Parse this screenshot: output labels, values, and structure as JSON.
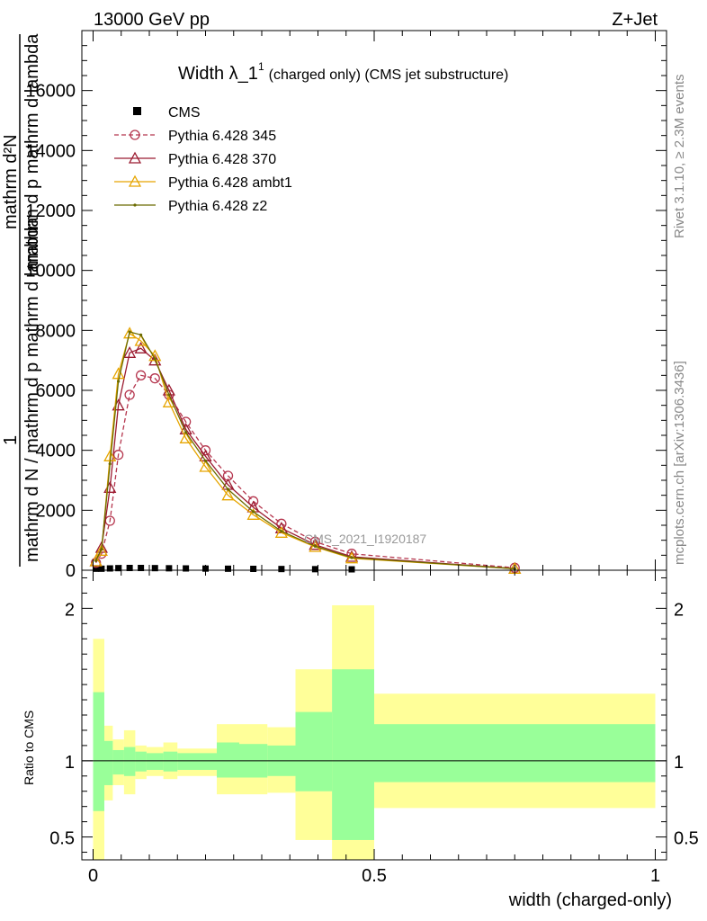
{
  "header": {
    "left": "13000 GeV pp",
    "right": "Z+Jet"
  },
  "side_text": {
    "rivet": "Rivet 3.1.10, ≥ 2.3M events",
    "mcplots": "mcplots.cern.ch [arXiv:1306.3436]"
  },
  "chart_data": [
    {
      "type": "line",
      "title_main": "Width λ_1",
      "title_sup": "1",
      "title_rest": "(charged only) (CMS jet substructure)",
      "watermark": "CMS_2021_I1920187",
      "ylabel_parts": [
        "1",
        "mathrm d N",
        "mathrm d²N",
        "mathrm d p_mathrm d lambda"
      ],
      "ylabel_lines": [
        "1",
        "mathrm d N / mathrm d p mathrm d lambda",
        "mathrm d²N",
        "mathrm d p mathrm d lambda"
      ],
      "ylim": [
        0,
        18000
      ],
      "xlim": [
        -0.02,
        1.02
      ],
      "yticks": [
        0,
        2000,
        4000,
        6000,
        8000,
        10000,
        12000,
        14000,
        16000
      ],
      "ytick_labels": [
        "0",
        "2000",
        "4000",
        "6000",
        "8000",
        "10000",
        "12000",
        "14000",
        "16000"
      ],
      "legend_placement": "top-left",
      "series": [
        {
          "name": "CMS",
          "color": "#000000",
          "marker": "square",
          "x": [
            0.005,
            0.015,
            0.03,
            0.045,
            0.065,
            0.085,
            0.11,
            0.135,
            0.165,
            0.2,
            0.24,
            0.285,
            0.335,
            0.395,
            0.46
          ],
          "y": [
            50,
            50,
            60,
            70,
            75,
            75,
            70,
            65,
            60,
            55,
            50,
            45,
            40,
            35,
            30
          ]
        },
        {
          "name": "Pythia 6.428 345",
          "color": "#b5364e",
          "marker": "circle",
          "dashed": true,
          "x": [
            0.005,
            0.015,
            0.03,
            0.045,
            0.065,
            0.085,
            0.11,
            0.135,
            0.165,
            0.2,
            0.24,
            0.285,
            0.335,
            0.395,
            0.46,
            0.75
          ],
          "y": [
            250,
            550,
            1650,
            3850,
            5850,
            6500,
            6400,
            5850,
            4950,
            4000,
            3150,
            2300,
            1550,
            950,
            550,
            80
          ]
        },
        {
          "name": "Pythia 6.428 370",
          "color": "#9b1b30",
          "marker": "triangle",
          "x": [
            0.005,
            0.015,
            0.03,
            0.045,
            0.065,
            0.085,
            0.11,
            0.135,
            0.165,
            0.2,
            0.24,
            0.285,
            0.335,
            0.395,
            0.46,
            0.75
          ],
          "y": [
            300,
            750,
            2750,
            5500,
            7250,
            7400,
            7000,
            6000,
            4700,
            3800,
            2850,
            2100,
            1400,
            850,
            450,
            55
          ]
        },
        {
          "name": "Pythia 6.428 ambt1",
          "color": "#e6a500",
          "marker": "triangle",
          "x": [
            0.005,
            0.015,
            0.03,
            0.045,
            0.065,
            0.085,
            0.11,
            0.135,
            0.165,
            0.2,
            0.24,
            0.285,
            0.335,
            0.395,
            0.46,
            0.75
          ],
          "y": [
            300,
            650,
            3800,
            6550,
            7900,
            7650,
            7150,
            5600,
            4400,
            3450,
            2500,
            1850,
            1250,
            780,
            400,
            50
          ]
        },
        {
          "name": "Pythia 6.428 z2",
          "color": "#6b6b00",
          "marker": "dot",
          "x": [
            0.005,
            0.015,
            0.03,
            0.045,
            0.065,
            0.085,
            0.11,
            0.135,
            0.165,
            0.2,
            0.24,
            0.285,
            0.335,
            0.395,
            0.46,
            0.75
          ],
          "y": [
            320,
            700,
            3550,
            6300,
            7950,
            7850,
            7050,
            5850,
            4600,
            3650,
            2700,
            1950,
            1300,
            800,
            420,
            50
          ]
        }
      ]
    },
    {
      "type": "area",
      "ylabel": "Ratio to CMS",
      "xlabel": "width (charged-only)",
      "xlim": [
        -0.02,
        1.02
      ],
      "ylim": [
        0.35,
        2.25
      ],
      "yticks": [
        0.5,
        1,
        2
      ],
      "ytick_labels": [
        "0.5",
        "1",
        "2"
      ],
      "xticks": [
        0,
        0.5,
        1
      ],
      "xtick_labels": [
        "0",
        "0.5",
        "1"
      ],
      "bins": [
        {
          "lo": 0.0,
          "hi": 0.02,
          "stat_lo": 0.67,
          "stat_hi": 1.45,
          "tot_lo": 0.0,
          "tot_hi": 1.8
        },
        {
          "lo": 0.02,
          "hi": 0.035,
          "stat_lo": 0.84,
          "stat_hi": 1.13,
          "tot_lo": 0.74,
          "tot_hi": 1.23
        },
        {
          "lo": 0.035,
          "hi": 0.055,
          "stat_lo": 0.91,
          "stat_hi": 1.07,
          "tot_lo": 0.84,
          "tot_hi": 1.14
        },
        {
          "lo": 0.055,
          "hi": 0.075,
          "stat_lo": 0.9,
          "stat_hi": 1.09,
          "tot_lo": 0.78,
          "tot_hi": 1.2
        },
        {
          "lo": 0.075,
          "hi": 0.095,
          "stat_lo": 0.93,
          "stat_hi": 1.06,
          "tot_lo": 0.88,
          "tot_hi": 1.1
        },
        {
          "lo": 0.095,
          "hi": 0.125,
          "stat_lo": 0.94,
          "stat_hi": 1.05,
          "tot_lo": 0.9,
          "tot_hi": 1.09
        },
        {
          "lo": 0.125,
          "hi": 0.15,
          "stat_lo": 0.93,
          "stat_hi": 1.06,
          "tot_lo": 0.88,
          "tot_hi": 1.12
        },
        {
          "lo": 0.15,
          "hi": 0.18,
          "stat_lo": 0.94,
          "stat_hi": 1.05,
          "tot_lo": 0.9,
          "tot_hi": 1.08
        },
        {
          "lo": 0.18,
          "hi": 0.22,
          "stat_lo": 0.94,
          "stat_hi": 1.05,
          "tot_lo": 0.9,
          "tot_hi": 1.08
        },
        {
          "lo": 0.22,
          "hi": 0.26,
          "stat_lo": 0.89,
          "stat_hi": 1.12,
          "tot_lo": 0.78,
          "tot_hi": 1.24
        },
        {
          "lo": 0.26,
          "hi": 0.31,
          "stat_lo": 0.89,
          "stat_hi": 1.11,
          "tot_lo": 0.78,
          "tot_hi": 1.24
        },
        {
          "lo": 0.31,
          "hi": 0.36,
          "stat_lo": 0.9,
          "stat_hi": 1.1,
          "tot_lo": 0.79,
          "tot_hi": 1.22
        },
        {
          "lo": 0.36,
          "hi": 0.425,
          "stat_lo": 0.8,
          "stat_hi": 1.32,
          "tot_lo": 0.48,
          "tot_hi": 1.6
        },
        {
          "lo": 0.425,
          "hi": 0.5,
          "stat_lo": 0.48,
          "stat_hi": 1.6,
          "tot_lo": 0.0,
          "tot_hi": 2.02
        },
        {
          "lo": 0.5,
          "hi": 1.0,
          "stat_lo": 0.86,
          "stat_hi": 1.24,
          "tot_lo": 0.69,
          "tot_hi": 1.44
        }
      ],
      "colors": {
        "stat": "#99ff99",
        "total": "#ffff99"
      }
    }
  ]
}
